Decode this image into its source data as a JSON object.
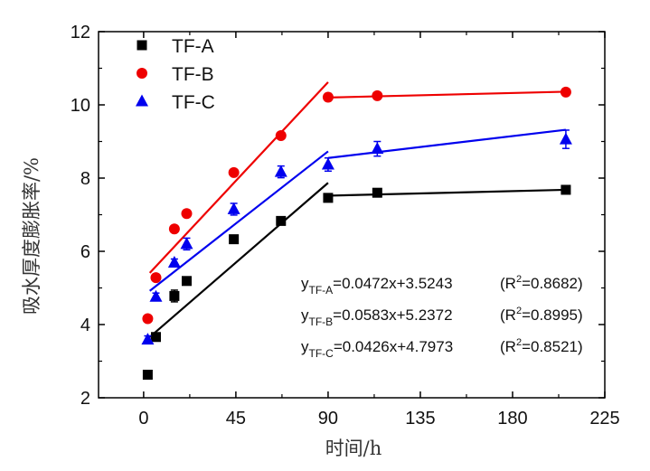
{
  "chart_data": {
    "type": "scatter",
    "xlabel": "时间/h",
    "ylabel": "吸水厚度膨胀率/%",
    "xlim": [
      -22,
      225
    ],
    "ylim": [
      2,
      12
    ],
    "xticks": [
      0,
      45,
      90,
      135,
      180,
      225
    ],
    "yticks": [
      2,
      4,
      6,
      8,
      10,
      12
    ],
    "grid": false,
    "legend_position": "top-left",
    "series": [
      {
        "name": "TF-A",
        "color": "#000000",
        "marker": "square",
        "x": [
          2,
          6,
          15,
          21,
          44,
          67,
          90,
          114,
          206
        ],
        "y": [
          2.63,
          3.66,
          4.78,
          5.19,
          6.33,
          6.83,
          7.46,
          7.6,
          7.68
        ],
        "err": [
          0.05,
          0.05,
          0.16,
          0.08,
          0.08,
          0.07,
          0.08,
          0.08,
          0.05
        ],
        "fits": [
          {
            "x": [
              3,
              90
            ],
            "y": [
              3.66,
              7.87
            ]
          },
          {
            "x": [
              90,
              206
            ],
            "y": [
              7.52,
              7.68
            ]
          }
        ]
      },
      {
        "name": "TF-B",
        "color": "#ee0000",
        "marker": "circle",
        "x": [
          2,
          6,
          15,
          21,
          44,
          67,
          90,
          114,
          206
        ],
        "y": [
          4.16,
          5.28,
          6.61,
          7.03,
          8.15,
          9.16,
          10.21,
          10.25,
          10.35
        ],
        "err": [
          0.05,
          0.05,
          0.05,
          0.1,
          0.05,
          0.05,
          0.1,
          0.08,
          0.06
        ],
        "fits": [
          {
            "x": [
              3,
              90
            ],
            "y": [
              5.41,
              10.62
            ]
          },
          {
            "x": [
              90,
              206
            ],
            "y": [
              10.2,
              10.36
            ]
          }
        ]
      },
      {
        "name": "TF-C",
        "color": "#0000ee",
        "marker": "triangle",
        "x": [
          2,
          6,
          15,
          21,
          44,
          67,
          90,
          114,
          206
        ],
        "y": [
          3.59,
          4.76,
          5.69,
          6.2,
          7.15,
          8.17,
          8.37,
          8.8,
          9.06
        ],
        "err": [
          0.1,
          0.1,
          0.1,
          0.16,
          0.16,
          0.16,
          0.18,
          0.2,
          0.25
        ],
        "fits": [
          {
            "x": [
              3,
              90
            ],
            "y": [
              4.92,
              8.73
            ]
          },
          {
            "x": [
              90,
              206
            ],
            "y": [
              8.55,
              9.32
            ]
          }
        ]
      }
    ],
    "annotations": [
      {
        "id": "a",
        "main": "y",
        "sub": "TF-A",
        "eq": "=0.0472x+3.5243",
        "r_pre": "(R",
        "sup": "2",
        "r_post": "=0.8682)"
      },
      {
        "id": "b",
        "main": "y",
        "sub": "TF-B",
        "eq": "=0.0583x+5.2372",
        "r_pre": "(R",
        "sup": "2",
        "r_post": "=0.8995)"
      },
      {
        "id": "c",
        "main": "y",
        "sub": "TF-C",
        "eq": "=0.0426x+4.7973",
        "r_pre": "(R",
        "sup": "2",
        "r_post": "=0.8521)"
      }
    ]
  }
}
